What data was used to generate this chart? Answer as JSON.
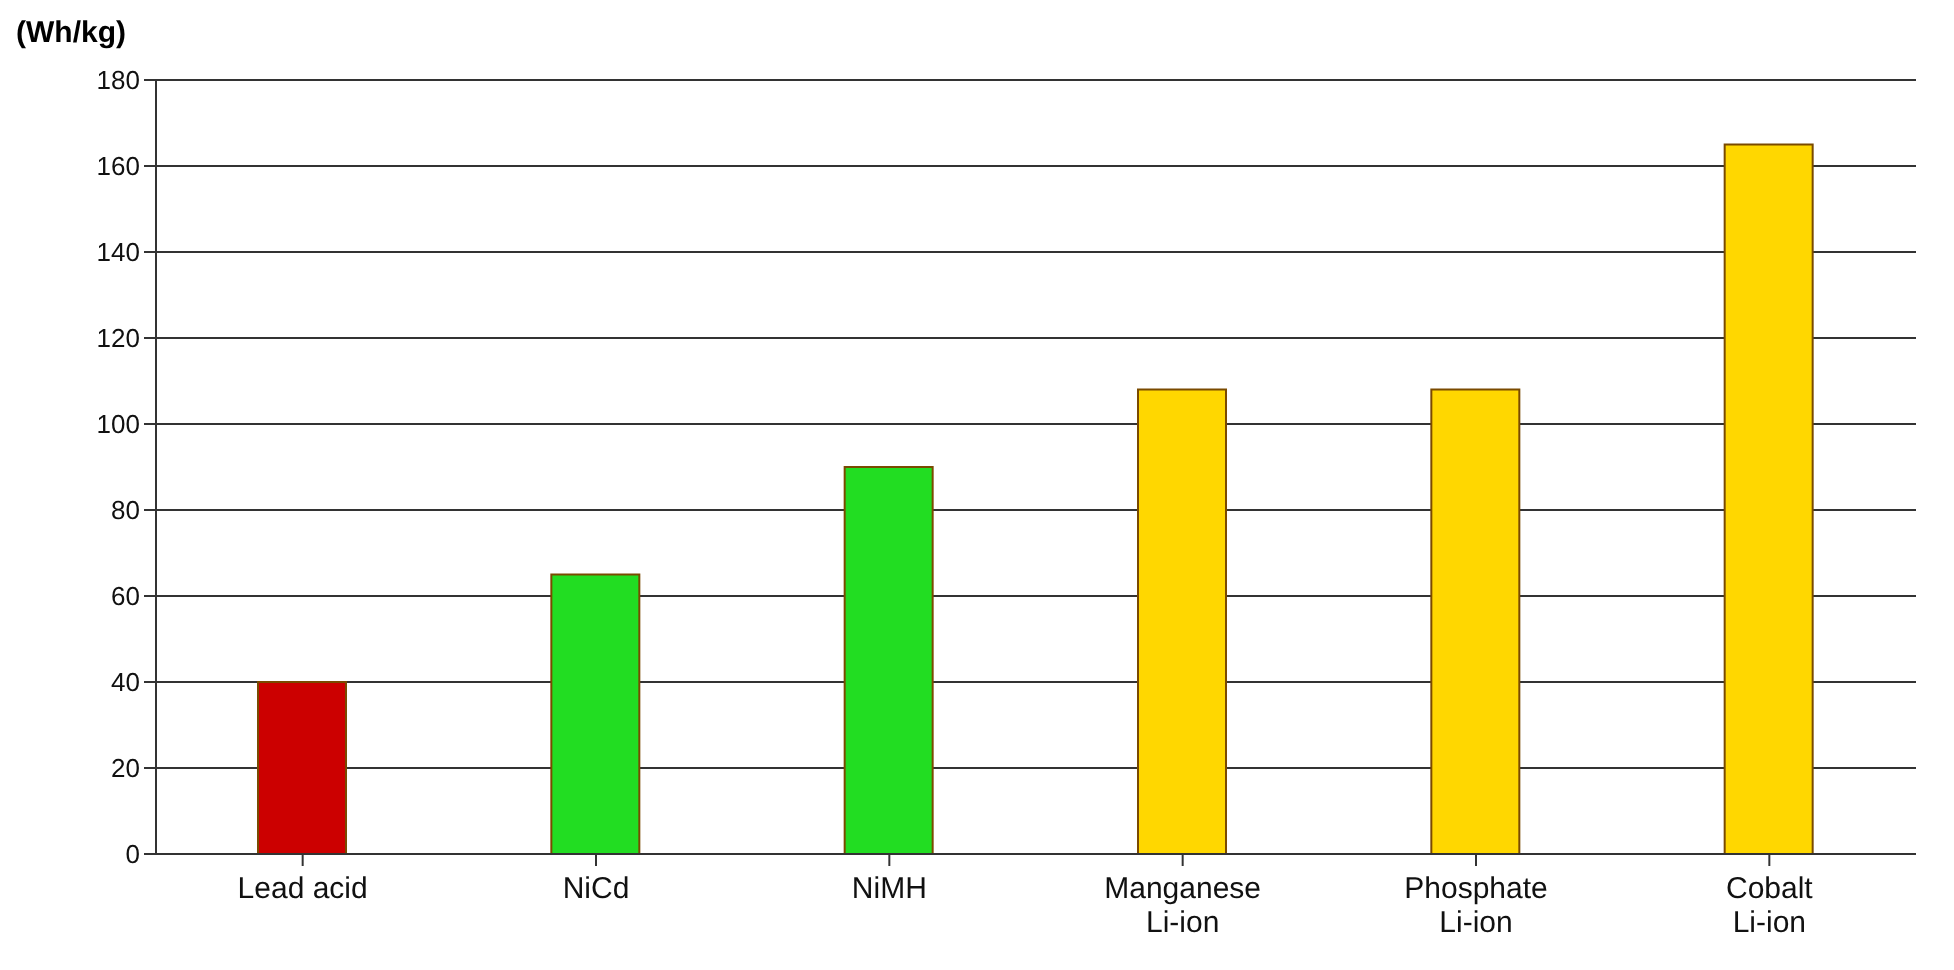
{
  "chart_data": {
    "type": "bar",
    "ylabel": "(Wh/kg)",
    "categories": [
      "Lead acid",
      "NiCd",
      "NiMH",
      "Manganese Li-ion",
      "Phosphate Li-ion",
      "Cobalt Li-ion"
    ],
    "values": [
      40,
      65,
      90,
      108,
      108,
      165
    ],
    "colors": [
      "#cc0000",
      "#22dd22",
      "#22dd22",
      "#ffd700",
      "#ffd700",
      "#ffd700"
    ],
    "ylim": [
      0,
      180
    ],
    "yticks": [
      0,
      20,
      40,
      60,
      80,
      100,
      120,
      140,
      160,
      180
    ],
    "grid": "y"
  }
}
